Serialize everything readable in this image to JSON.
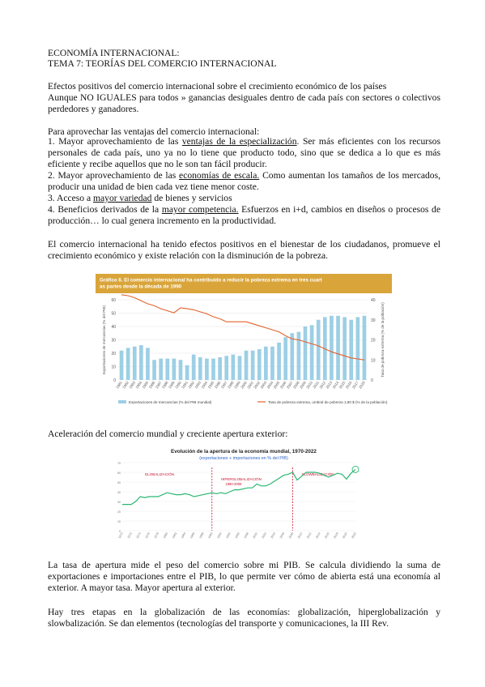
{
  "header": {
    "subject": "ECONOMÍA INTERNACIONAL:",
    "topic": "TEMA 7: TEORÍAS DEL COMERCIO INTERNACIONAL"
  },
  "intro": {
    "line1": "Efectos positivos del comercio internacional sobre el crecimiento económico de los países",
    "line2": "Aunque NO IGUALES para todos » ganancias desiguales dentro de cada país con sectores o colectivos perdedores y ganadores."
  },
  "ventajas": {
    "lead": "Para aprovechar las ventajas del comercio internacional:",
    "item1_pre": "1. Mayor aprovechamiento de las ",
    "item1_link": "ventajas de la especialización",
    "item1_post": ". Ser más eficientes con los recursos personales de cada país, uno ya no lo tiene que producto todo, sino que se dedica a lo que es más eficiente y recibe aquellos que no le son tan fácil producir.",
    "item2_pre": "2. Mayor aprovechamiento de las ",
    "item2_link": "economías de escala.",
    "item2_post": " Como aumentan los tamaños de los mercados, producir una unidad de bien cada vez tiene menor coste.",
    "item3_pre": "3. Acceso a ",
    "item3_link": "mayor variedad",
    "item3_post": " de bienes y servicios",
    "item4_pre": "4. Beneficios derivados de la ",
    "item4_link": "mayor competencia.",
    "item4_post": " Esfuerzos en i+d, cambios en diseños o procesos de producción… lo cual genera incremento en la productividad."
  },
  "bienestar": "El comercio internacional ha tenido efectos positivos en el bienestar de los ciudadanos, promueve el crecimiento económico y existe relación con la disminución de la pobreza.",
  "aceleracion": "Aceleración del comercio mundial y creciente apertura exterior:",
  "tasa": "La tasa de apertura mide el peso del comercio sobre mi PIB. Se calcula dividiendo la suma de exportaciones e importaciones entre el PIB, lo que permite ver cómo de abierta está una economía al exterior. A mayor tasa. Mayor apertura al exterior.",
  "etapas": "Hay tres etapas en la globalización de las economías: globalización, hiperglobalización y slowbalización. Se dan elementos (tecnologías del transporte y comunicaciones, la III Rev.",
  "colors": {
    "chart1_header": "#d9a53a",
    "bar": "#9dcfe5",
    "poverty_line": "#e2632c",
    "chart2_line": "#2bb673",
    "chart2_vline": "#c8102e"
  },
  "chart_data": [
    {
      "type": "bar",
      "title": "Gráfico 6. El comercio internacional ha contribuido a reducir la pobreza extrema en tres cuartas partes desde la década de 1990",
      "ylabel_left": "Exportaciones de mercancías (% del PIB)",
      "ylabel_right": "Tasa de pobreza extrema (% de la población)",
      "ylim_left": [
        0,
        60
      ],
      "ylim_right": [
        0,
        40
      ],
      "yticks_left": [
        "0",
        "10",
        "20",
        "30",
        "40",
        "50",
        "60"
      ],
      "yticks_right": [
        "0",
        "10",
        "20",
        "30",
        "40"
      ],
      "categories": [
        "1981",
        "1982",
        "1983",
        "1984",
        "1985",
        "1986",
        "1987",
        "1988",
        "1989",
        "1990",
        "1991",
        "1992",
        "1993",
        "1994",
        "1995",
        "1996",
        "1997",
        "1998",
        "1999",
        "2000",
        "2001",
        "2002",
        "2003",
        "2004",
        "2005",
        "2006",
        "2007",
        "2008",
        "2009",
        "2010",
        "2011",
        "2012",
        "2013",
        "2014",
        "2015",
        "2016",
        "2017",
        "2018"
      ],
      "series": [
        {
          "name": "Exportaciones de mercancías (% del PIB mundial)",
          "kind": "bar",
          "values": [
            22,
            24,
            25,
            26,
            24,
            15,
            16,
            16,
            16,
            15,
            11,
            19,
            17,
            16,
            16,
            17,
            18,
            19,
            18,
            22,
            22,
            23,
            25,
            25,
            28,
            32,
            35,
            36,
            40,
            41,
            45,
            47,
            48,
            48,
            47,
            45,
            47,
            48
          ]
        },
        {
          "name": "Tasa de pobreza extrema, umbral de pobreza 1,90 $ (% de la población)",
          "kind": "line",
          "values": [
            42.5,
            42,
            41,
            39.5,
            38,
            37,
            35.5,
            34.5,
            33.5,
            36,
            35.5,
            35,
            34,
            33,
            31.5,
            30.5,
            29,
            29,
            29,
            29,
            28,
            27,
            26,
            25,
            24,
            22,
            20.5,
            20,
            19,
            18,
            17,
            15.5,
            14,
            13,
            12,
            11,
            10.5,
            10
          ]
        }
      ],
      "legend": "bottom"
    },
    {
      "type": "line",
      "title": "Evolución de la apertura de la economía mundial, 1970-2022",
      "subtitle": "(exportaciones + importaciones en % del PIB)",
      "phases": [
        "GLOBALIZACIÓN",
        "HIPERGLOBALIZACIÓN 1990-2008",
        "SLOWBALIZACIÓN"
      ],
      "x": [
        1970,
        1971,
        1972,
        1973,
        1974,
        1975,
        1976,
        1977,
        1978,
        1979,
        1980,
        1981,
        1982,
        1983,
        1984,
        1985,
        1986,
        1987,
        1988,
        1989,
        1990,
        1991,
        1992,
        1993,
        1994,
        1995,
        1996,
        1997,
        1998,
        1999,
        2000,
        2001,
        2002,
        2003,
        2004,
        2005,
        2006,
        2007,
        2008,
        2009,
        2010,
        2011,
        2012,
        2013,
        2014,
        2015,
        2016,
        2017,
        2018,
        2019,
        2020,
        2021,
        2022
      ],
      "values": [
        27,
        27,
        27,
        30,
        35,
        34,
        35,
        35,
        35,
        37,
        39,
        38,
        37,
        37,
        38,
        37,
        35,
        36,
        37,
        38,
        39,
        38,
        39,
        38,
        40,
        42,
        42,
        43,
        44,
        44,
        48,
        46,
        46,
        48,
        51,
        54,
        57,
        58,
        60,
        52,
        56,
        60,
        60,
        60,
        59,
        57,
        55,
        57,
        59,
        58,
        53,
        59,
        63
      ],
      "xticks": [
        "1970",
        "1972",
        "1974",
        "1976",
        "1978",
        "1980",
        "1982",
        "1984",
        "1986",
        "1988",
        "1990",
        "1992",
        "1994",
        "1996",
        "1998",
        "2000",
        "2002",
        "2004",
        "2006",
        "2008",
        "2010",
        "2012",
        "2014",
        "2016",
        "2018",
        "2020",
        "2022"
      ],
      "yticks": [
        "0",
        "10",
        "20",
        "30",
        "40",
        "50",
        "60",
        "70"
      ],
      "ylim": [
        0,
        70
      ]
    }
  ]
}
